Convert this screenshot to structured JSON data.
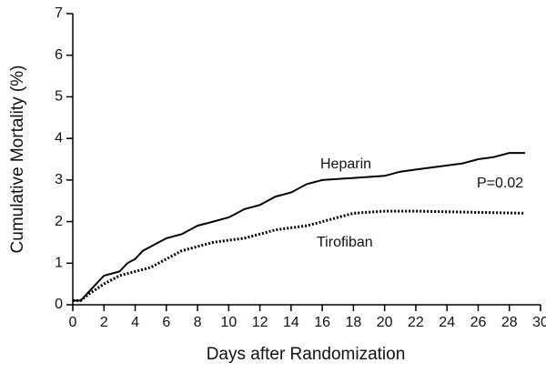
{
  "chart_data": {
    "type": "line",
    "x_label": "Days after Randomization",
    "y_label": "Cumulative Mortality (%)",
    "annotation": "P=0.02",
    "xlim": [
      0,
      30
    ],
    "ylim": [
      0,
      7
    ],
    "xticks": [
      0,
      2,
      4,
      6,
      8,
      10,
      12,
      14,
      16,
      18,
      20,
      22,
      24,
      26,
      28,
      30
    ],
    "yticks": [
      0,
      1,
      2,
      3,
      4,
      5,
      6,
      7
    ],
    "series": [
      {
        "name": "Heparin",
        "color": "#000000",
        "dashed": false,
        "x": [
          0,
          0.5,
          1,
          1.5,
          2,
          3,
          3.5,
          4,
          4.5,
          5,
          6,
          7,
          8,
          9,
          10,
          11,
          12,
          13,
          14,
          15,
          16,
          18,
          20,
          21,
          22,
          23,
          25,
          26,
          27,
          28,
          29
        ],
        "values": [
          0.1,
          0.1,
          0.3,
          0.5,
          0.7,
          0.8,
          1.0,
          1.1,
          1.3,
          1.4,
          1.6,
          1.7,
          1.9,
          2.0,
          2.1,
          2.3,
          2.4,
          2.6,
          2.7,
          2.9,
          3.0,
          3.05,
          3.1,
          3.2,
          3.25,
          3.3,
          3.4,
          3.5,
          3.55,
          3.65,
          3.65
        ]
      },
      {
        "name": "Tirofiban",
        "color": "#000000",
        "dashed": true,
        "x": [
          0,
          0.5,
          1,
          2,
          3,
          4,
          5,
          6,
          7,
          8,
          9,
          10,
          11,
          12,
          13,
          14,
          15,
          16,
          17,
          18,
          20,
          22,
          29
        ],
        "values": [
          0.1,
          0.1,
          0.25,
          0.5,
          0.7,
          0.8,
          0.9,
          1.1,
          1.3,
          1.4,
          1.5,
          1.55,
          1.6,
          1.7,
          1.8,
          1.85,
          1.9,
          2.0,
          2.1,
          2.2,
          2.25,
          2.25,
          2.2
        ]
      }
    ]
  }
}
